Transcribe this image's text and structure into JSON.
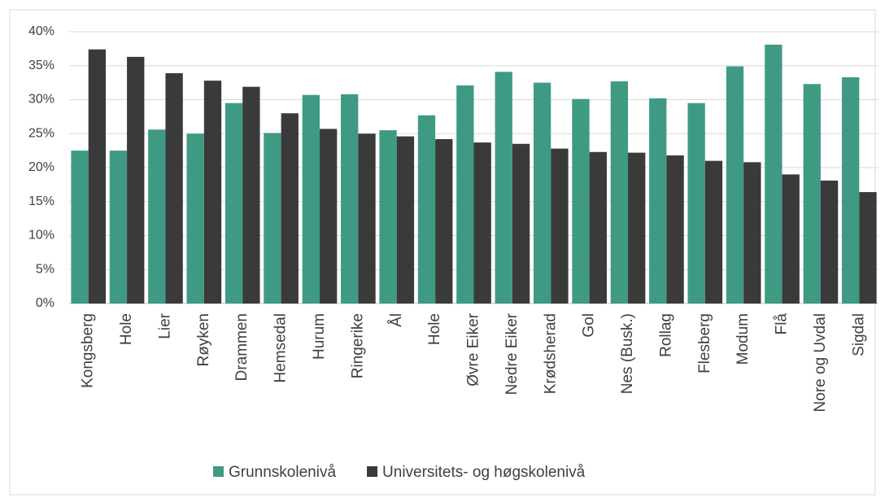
{
  "chart_data": {
    "type": "bar",
    "categories": [
      "Kongsberg",
      "Hole",
      "Lier",
      "Røyken",
      "Drammen",
      "Hemsedal",
      "Hurum",
      "Ringerike",
      "Ål",
      "Hole",
      "Øvre Eiker",
      "Nedre Eiker",
      "Krødsherad",
      "Gol",
      "Nes (Busk.)",
      "Rollag",
      "Flesberg",
      "Modum",
      "Flå",
      "Nore og Uvdal",
      "Sigdal"
    ],
    "series": [
      {
        "name": "Grunnskolenivå",
        "color": "#3f9a84",
        "values": [
          22.5,
          22.5,
          25.6,
          25.0,
          29.5,
          25.1,
          30.7,
          30.8,
          25.5,
          27.7,
          32.1,
          34.1,
          32.5,
          30.1,
          32.7,
          30.2,
          29.5,
          34.9,
          38.1,
          32.3,
          33.3
        ]
      },
      {
        "name": "Universitets- og høgskolenivå",
        "color": "#3a3a3a",
        "values": [
          37.4,
          36.3,
          33.9,
          32.8,
          31.9,
          28.0,
          25.7,
          25.0,
          24.6,
          24.2,
          23.7,
          23.5,
          22.8,
          22.3,
          22.2,
          21.8,
          21.0,
          20.8,
          19.0,
          18.1,
          16.4
        ]
      }
    ],
    "ylim": [
      0,
      40
    ],
    "yticks": [
      {
        "value": 0,
        "label": "0%"
      },
      {
        "value": 5,
        "label": "5%"
      },
      {
        "value": 10,
        "label": "10%"
      },
      {
        "value": 15,
        "label": "15%"
      },
      {
        "value": 20,
        "label": "20%"
      },
      {
        "value": 25,
        "label": "25%"
      },
      {
        "value": 30,
        "label": "30%"
      },
      {
        "value": 35,
        "label": "35%"
      },
      {
        "value": 40,
        "label": "40%"
      }
    ],
    "grid": true,
    "legend": "bottom"
  }
}
